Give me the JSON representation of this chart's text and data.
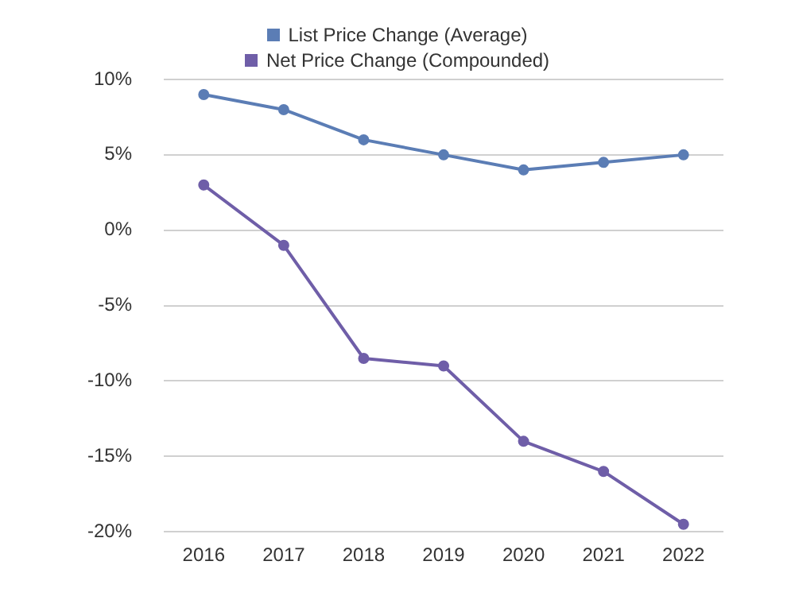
{
  "chart_data": {
    "type": "line",
    "categories": [
      "2016",
      "2017",
      "2018",
      "2019",
      "2020",
      "2021",
      "2022"
    ],
    "series": [
      {
        "name": "List Price Change (Average)",
        "color": "#5b7db5",
        "values": [
          9,
          8,
          6,
          5,
          4,
          4.5,
          5
        ]
      },
      {
        "name": "Net Price Change (Compounded)",
        "color": "#6f5ea8",
        "values": [
          3,
          -1,
          -8.5,
          -9,
          -14,
          -16,
          -19.5
        ]
      }
    ],
    "ylim": [
      -20,
      10
    ],
    "yticks": [
      {
        "value": -20,
        "label": "-20%"
      },
      {
        "value": -15,
        "label": "-15%"
      },
      {
        "value": -10,
        "label": "-10%"
      },
      {
        "value": -5,
        "label": "-5%"
      },
      {
        "value": 0,
        "label": "0%"
      },
      {
        "value": 5,
        "label": "5%"
      },
      {
        "value": 10,
        "label": "10%"
      }
    ],
    "grid": "y",
    "legend": "top",
    "marker": "circle",
    "line_style": "solid"
  }
}
